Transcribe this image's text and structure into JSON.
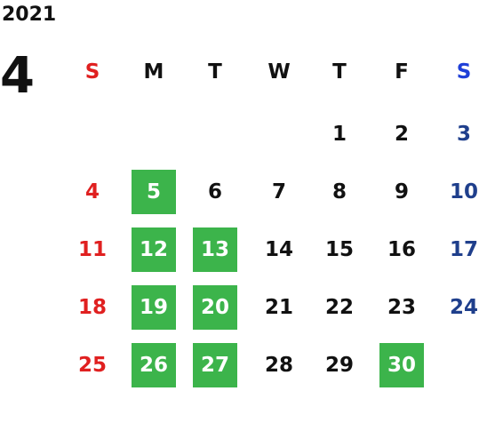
{
  "calendar": {
    "year": "2021",
    "month": "4",
    "weekdays": [
      "S",
      "M",
      "T",
      "W",
      "T",
      "F",
      "S"
    ],
    "highlight_color": "#3cb44b",
    "sunday_color": "#e02020",
    "saturday_header_color": "#1f3fd8",
    "saturday_color": "#1f3f8c",
    "weeks": [
      [
        null,
        null,
        null,
        null,
        "1",
        "2",
        "3"
      ],
      [
        "4",
        "5",
        "6",
        "7",
        "8",
        "9",
        "10"
      ],
      [
        "11",
        "12",
        "13",
        "14",
        "15",
        "16",
        "17"
      ],
      [
        "18",
        "19",
        "20",
        "21",
        "22",
        "23",
        "24"
      ],
      [
        "25",
        "26",
        "27",
        "28",
        "29",
        "30",
        null
      ]
    ],
    "highlighted_days": [
      "5",
      "12",
      "13",
      "19",
      "20",
      "26",
      "27",
      "30"
    ]
  }
}
